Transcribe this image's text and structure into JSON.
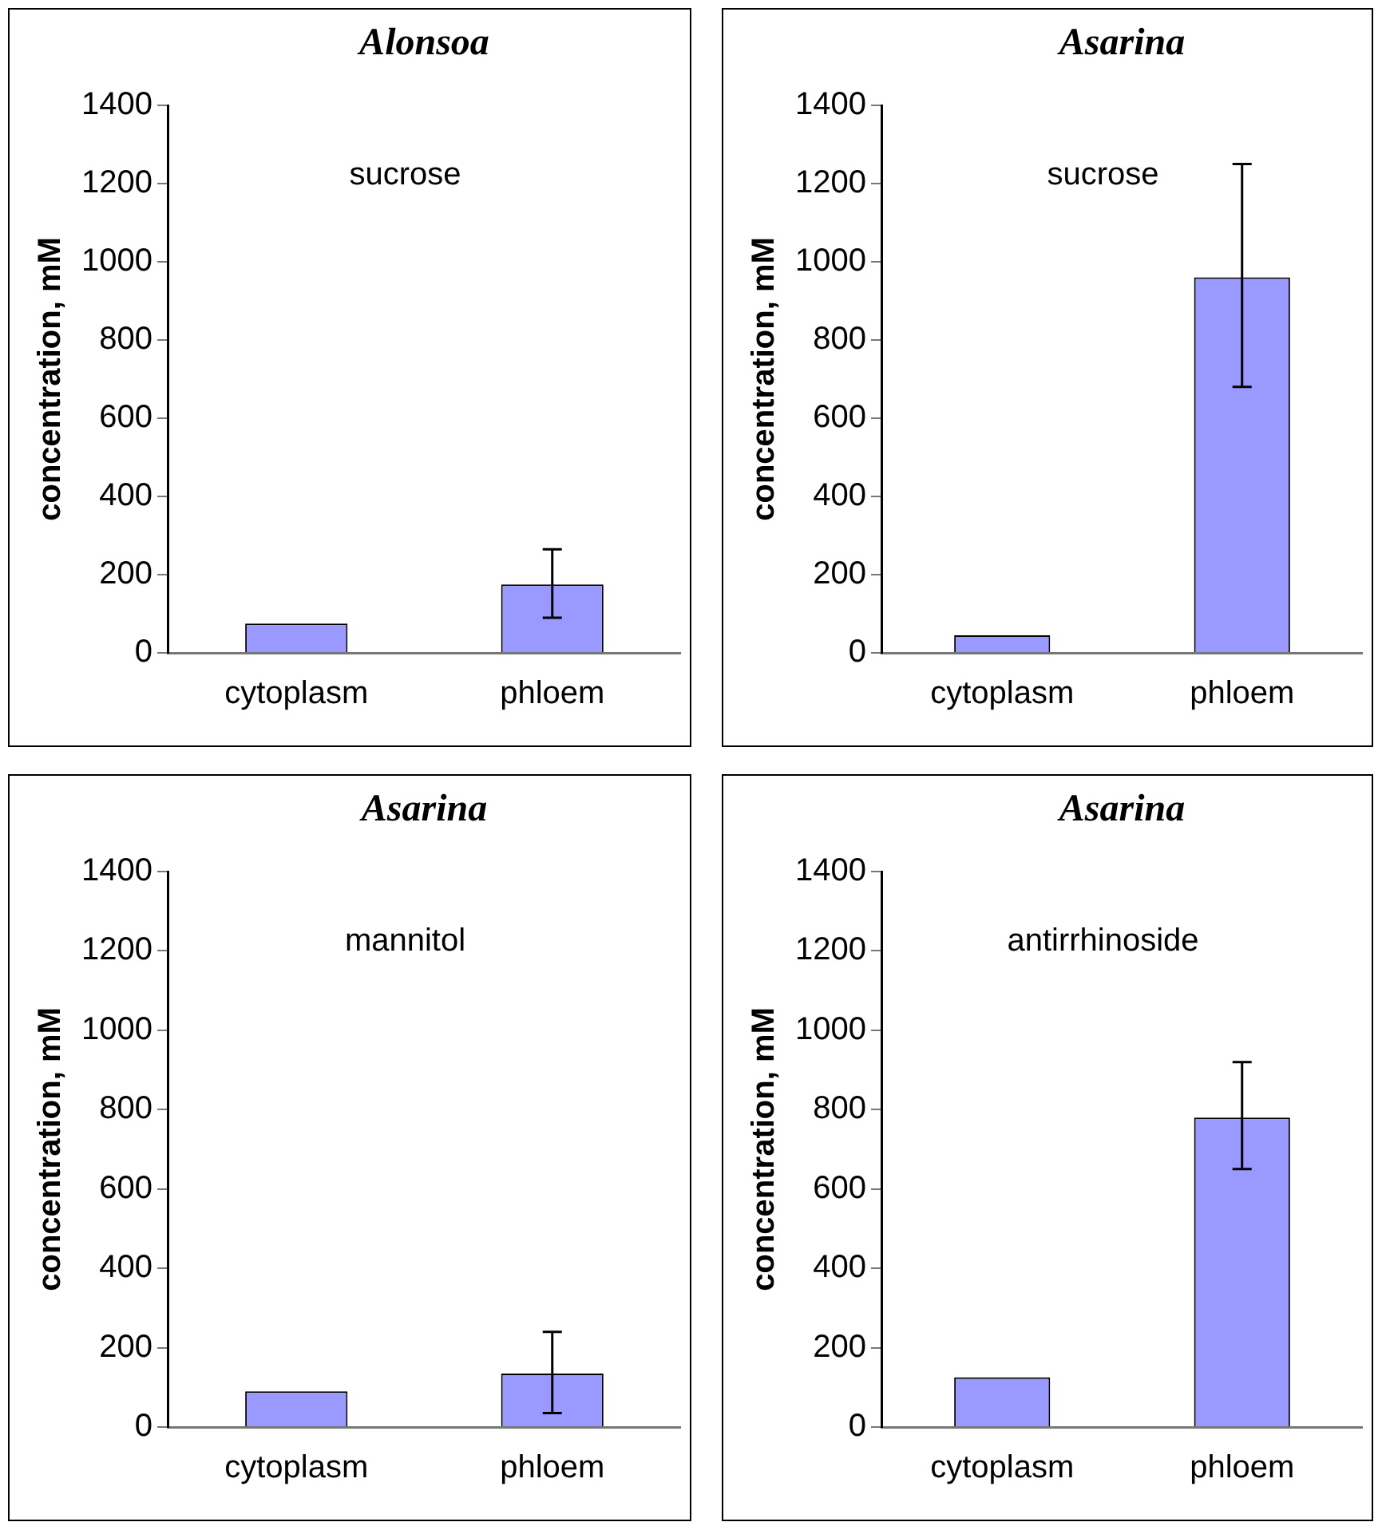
{
  "chart_data": [
    {
      "type": "bar",
      "title": "Alonsoa",
      "ylabel": "concentration, mM",
      "annotations": [
        "sucrose"
      ],
      "categories": [
        "cytoplasm",
        "phloem"
      ],
      "values": [
        75,
        175
      ],
      "errors": [
        null,
        [
          90,
          265
        ]
      ],
      "color": "#9999ff",
      "ylim": [
        0,
        1400
      ],
      "yticks": [
        0,
        200,
        400,
        600,
        800,
        1000,
        1200,
        1400
      ],
      "grid": false
    },
    {
      "type": "bar",
      "title": "Asarina",
      "ylabel": "concentration, mM",
      "annotations": [
        "sucrose"
      ],
      "categories": [
        "cytoplasm",
        "phloem"
      ],
      "values": [
        45,
        960
      ],
      "errors": [
        null,
        [
          680,
          1250
        ]
      ],
      "color": "#9999ff",
      "ylim": [
        0,
        1400
      ],
      "yticks": [
        0,
        200,
        400,
        600,
        800,
        1000,
        1200,
        1400
      ],
      "grid": false
    },
    {
      "type": "bar",
      "title": "Asarina",
      "ylabel": "concentration, mM",
      "annotations": [
        "mannitol"
      ],
      "categories": [
        "cytoplasm",
        "phloem"
      ],
      "values": [
        90,
        135
      ],
      "errors": [
        null,
        [
          35,
          240
        ]
      ],
      "color": "#9999ff",
      "ylim": [
        0,
        1400
      ],
      "yticks": [
        0,
        200,
        400,
        600,
        800,
        1000,
        1200,
        1400
      ],
      "grid": false
    },
    {
      "type": "bar",
      "title": "Asarina",
      "ylabel": "concentration, mM",
      "annotations": [
        "antirrhinoside"
      ],
      "categories": [
        "cytoplasm",
        "phloem"
      ],
      "values": [
        125,
        780
      ],
      "errors": [
        null,
        [
          650,
          920
        ]
      ],
      "color": "#9999ff",
      "ylim": [
        0,
        1400
      ],
      "yticks": [
        0,
        200,
        400,
        600,
        800,
        1000,
        1200,
        1400
      ],
      "grid": false
    }
  ]
}
